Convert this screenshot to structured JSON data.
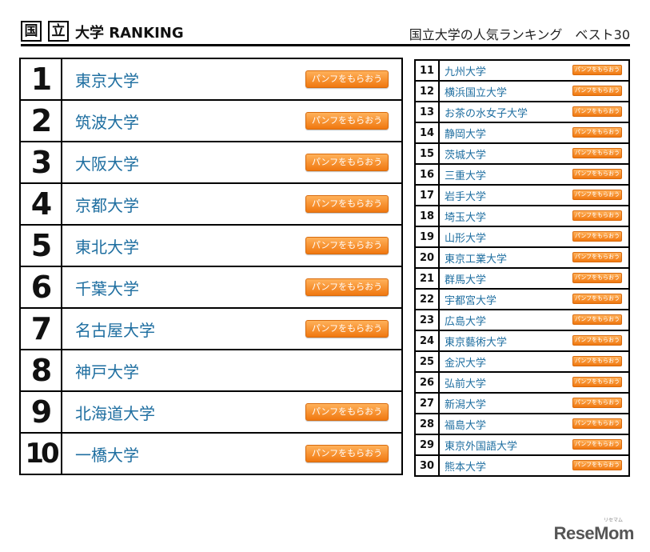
{
  "header": {
    "logo_chars": [
      "国",
      "立"
    ],
    "logo_title": "大学 RANKING",
    "subtitle": "国立大学の人気ランキング　ベスト30"
  },
  "button_label": "パンフをもらおう",
  "top10": [
    {
      "rank": "1",
      "name": "東京大学",
      "button": true
    },
    {
      "rank": "2",
      "name": "筑波大学",
      "button": true
    },
    {
      "rank": "3",
      "name": "大阪大学",
      "button": true
    },
    {
      "rank": "4",
      "name": "京都大学",
      "button": true
    },
    {
      "rank": "5",
      "name": "東北大学",
      "button": true
    },
    {
      "rank": "6",
      "name": "千葉大学",
      "button": true
    },
    {
      "rank": "7",
      "name": "名古屋大学",
      "button": true
    },
    {
      "rank": "8",
      "name": "神戸大学",
      "button": false
    },
    {
      "rank": "9",
      "name": "北海道大学",
      "button": true
    },
    {
      "rank": "10",
      "name": "一橋大学",
      "button": true
    }
  ],
  "rest": [
    {
      "rank": "11",
      "name": "九州大学"
    },
    {
      "rank": "12",
      "name": "横浜国立大学"
    },
    {
      "rank": "13",
      "name": "お茶の水女子大学"
    },
    {
      "rank": "14",
      "name": "静岡大学"
    },
    {
      "rank": "15",
      "name": "茨城大学"
    },
    {
      "rank": "16",
      "name": "三重大学"
    },
    {
      "rank": "17",
      "name": "岩手大学"
    },
    {
      "rank": "18",
      "name": "埼玉大学"
    },
    {
      "rank": "19",
      "name": "山形大学"
    },
    {
      "rank": "20",
      "name": "東京工業大学"
    },
    {
      "rank": "21",
      "name": "群馬大学"
    },
    {
      "rank": "22",
      "name": "宇都宮大学"
    },
    {
      "rank": "23",
      "name": "広島大学"
    },
    {
      "rank": "24",
      "name": "東京藝術大学"
    },
    {
      "rank": "25",
      "name": "金沢大学"
    },
    {
      "rank": "26",
      "name": "弘前大学"
    },
    {
      "rank": "27",
      "name": "新潟大学"
    },
    {
      "rank": "28",
      "name": "福島大学"
    },
    {
      "rank": "29",
      "name": "東京外国語大学"
    },
    {
      "rank": "30",
      "name": "熊本大学"
    }
  ],
  "watermark": {
    "main": "ReseMom",
    "small": "リセマム"
  }
}
